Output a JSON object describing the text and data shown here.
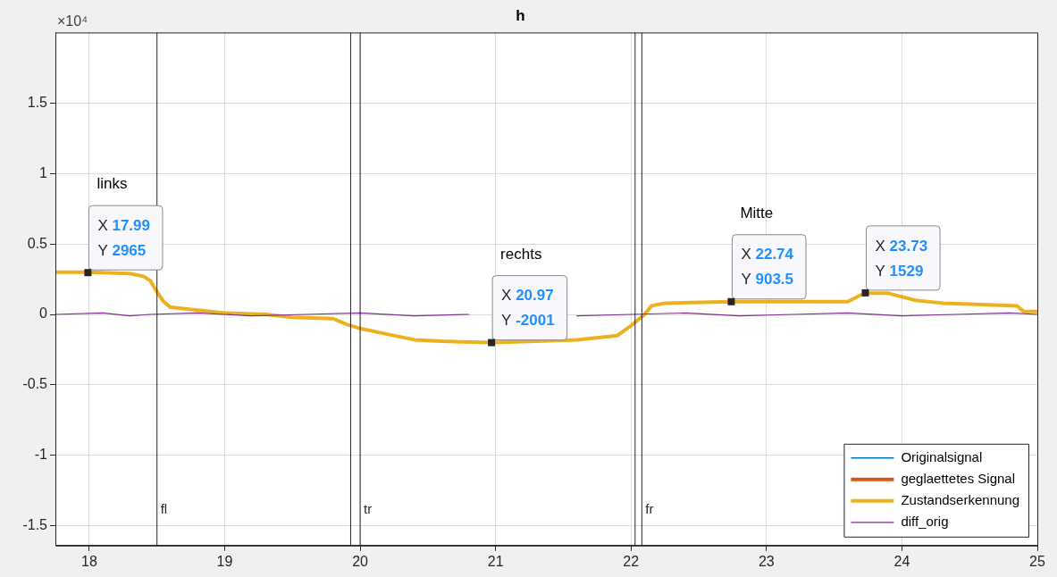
{
  "chart_data": {
    "type": "line",
    "title": "h",
    "x": [
      17.75,
      17.99,
      18.3,
      18.4,
      18.45,
      18.5,
      18.55,
      18.6,
      18.8,
      19.0,
      19.3,
      19.5,
      19.8,
      19.9,
      20.0,
      20.2,
      20.4,
      20.6,
      20.97,
      21.3,
      21.6,
      21.9,
      22.0,
      22.1,
      22.15,
      22.25,
      22.74,
      23.0,
      23.6,
      23.7,
      23.73,
      23.9,
      24.1,
      24.3,
      24.6,
      24.85,
      24.9,
      25.0
    ],
    "series": [
      {
        "name": "Originalsignal",
        "color": "#0072bd",
        "values": [
          null,
          null,
          null,
          null,
          null,
          null,
          null,
          null,
          null,
          null,
          null,
          null,
          null,
          null,
          null,
          null,
          null,
          null,
          null,
          null,
          null,
          null,
          null,
          null,
          null,
          null,
          null,
          null,
          null,
          null,
          null,
          null,
          null,
          null,
          null,
          null,
          null,
          null
        ]
      },
      {
        "name": "geglaettetes Signal",
        "color": "#d95319",
        "values": [
          null,
          null,
          null,
          null,
          null,
          null,
          null,
          null,
          null,
          null,
          null,
          null,
          null,
          null,
          null,
          null,
          null,
          null,
          null,
          null,
          null,
          null,
          null,
          null,
          null,
          null,
          null,
          null,
          null,
          null,
          null,
          null,
          null,
          null,
          null,
          null,
          null,
          null
        ]
      },
      {
        "name": "Zustandserkennung",
        "color": "#edb120",
        "values": [
          0.3,
          0.3,
          0.29,
          0.27,
          0.24,
          0.16,
          0.09,
          0.05,
          0.03,
          0.01,
          0,
          -0.02,
          -0.03,
          -0.07,
          -0.1,
          -0.14,
          -0.18,
          -0.19,
          -0.2,
          -0.19,
          -0.18,
          -0.15,
          -0.08,
          0,
          0.06,
          0.08,
          0.09,
          0.09,
          0.09,
          0.14,
          0.15,
          0.15,
          0.1,
          0.08,
          0.07,
          0.06,
          0.02,
          0.02
        ]
      },
      {
        "name": "diff_orig",
        "color": "#7e2f8e",
        "x": [
          17.75,
          18.1,
          18.3,
          18.45,
          18.8,
          19.2,
          19.6,
          20.0,
          20.4,
          20.8,
          21.2,
          21.6,
          22.0,
          22.4,
          22.8,
          23.2,
          23.6,
          24.0,
          24.4,
          24.8,
          25.0
        ],
        "values": [
          0,
          0.01,
          -0.01,
          0,
          0.01,
          -0.01,
          0,
          0.01,
          -0.01,
          0,
          null,
          -0.01,
          0,
          0.01,
          -0.01,
          0,
          0.01,
          -0.01,
          0,
          0.01,
          0
        ]
      }
    ],
    "xlim": [
      17.75,
      25
    ],
    "xticks": [
      18,
      19,
      20,
      21,
      22,
      23,
      24,
      25
    ],
    "ylim": [
      -1.64,
      2.0
    ],
    "yticks": [
      -1.5,
      -1,
      -0.5,
      0,
      0.5,
      1,
      1.5
    ],
    "grid": true,
    "legend": "bottom right",
    "marker": "none",
    "line_style": "solid",
    "ref_lines": [
      {
        "axis": "x",
        "value": 18.5,
        "label": "fl"
      },
      {
        "axis": "x",
        "value": 19.93,
        "label": null
      },
      {
        "axis": "x",
        "value": 20.0,
        "label": "tr"
      },
      {
        "axis": "x",
        "value": 22.03,
        "label": null
      },
      {
        "axis": "x",
        "value": 22.08,
        "label": "fr"
      }
    ],
    "annotations": [
      "×10⁴",
      "links",
      "rechts",
      "Mitte",
      {
        "text": "X 17.99\nY 2965",
        "x": 17.99,
        "y": 0.2965
      },
      {
        "text": "X 20.97\nY -2001",
        "x": 20.97,
        "y": -0.2001
      },
      {
        "text": "X 22.74\nY 903.5",
        "x": 22.74,
        "y": 0.09035
      },
      {
        "text": "X 23.73\nY 1529",
        "x": 23.73,
        "y": 0.1529
      }
    ]
  }
}
